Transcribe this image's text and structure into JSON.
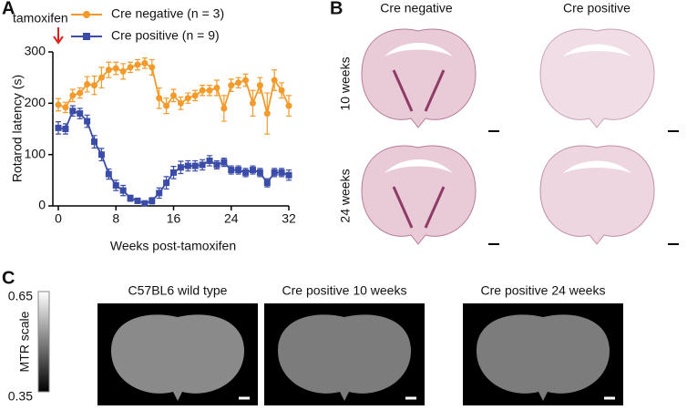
{
  "chart_data": {
    "type": "line",
    "annotation": "tamoxifen",
    "x_label": "Weeks post-tamoxifen",
    "y_label": "Rotarod latency (s)",
    "x": [
      0,
      1,
      2,
      3,
      4,
      5,
      6,
      7,
      8,
      9,
      10,
      11,
      12,
      13,
      14,
      15,
      16,
      17,
      18,
      19,
      20,
      21,
      22,
      23,
      24,
      25,
      26,
      27,
      28,
      29,
      30,
      31,
      32
    ],
    "series": [
      {
        "name": "Cre negative (n = 3)",
        "color": "#f39a2b",
        "values": [
          197,
          192,
          215,
          220,
          237,
          235,
          250,
          265,
          268,
          262,
          270,
          275,
          278,
          270,
          210,
          195,
          215,
          200,
          210,
          215,
          225,
          225,
          230,
          190,
          235,
          240,
          245,
          200,
          235,
          180,
          245,
          225,
          195
        ],
        "errors": [
          12,
          10,
          12,
          10,
          15,
          18,
          20,
          15,
          12,
          15,
          10,
          10,
          10,
          15,
          20,
          15,
          12,
          12,
          10,
          10,
          10,
          10,
          15,
          25,
          12,
          10,
          12,
          25,
          15,
          40,
          20,
          15,
          20
        ]
      },
      {
        "name": "Cre positive (n = 9)",
        "color": "#3a4ca8",
        "values": [
          152,
          150,
          185,
          180,
          165,
          125,
          100,
          62,
          40,
          30,
          15,
          10,
          5,
          10,
          25,
          45,
          65,
          75,
          78,
          78,
          80,
          88,
          80,
          85,
          70,
          70,
          65,
          70,
          65,
          45,
          65,
          65,
          60
        ],
        "errors": [
          12,
          10,
          10,
          10,
          12,
          12,
          12,
          10,
          10,
          10,
          6,
          5,
          4,
          6,
          10,
          12,
          12,
          12,
          10,
          10,
          10,
          10,
          8,
          8,
          8,
          8,
          8,
          8,
          8,
          8,
          8,
          8,
          10
        ]
      }
    ],
    "xlim": [
      0,
      32
    ],
    "xticks": [
      0,
      8,
      16,
      24,
      32
    ],
    "ylim": [
      0,
      300
    ],
    "yticks": [
      0,
      100,
      200,
      300
    ]
  },
  "panels": [
    "A",
    "B",
    "C"
  ],
  "panel_b": {
    "columns": [
      "Cre negative",
      "Cre positive"
    ],
    "rows": [
      "10 weeks",
      "24 weeks"
    ]
  },
  "panel_c": {
    "colorbar_label": "MTR scale",
    "colorbar_ticks": [
      0.65,
      0.35
    ],
    "images": [
      "C57BL6 wild type",
      "Cre positive 10 weeks",
      "Cre positive 24 weeks"
    ]
  }
}
